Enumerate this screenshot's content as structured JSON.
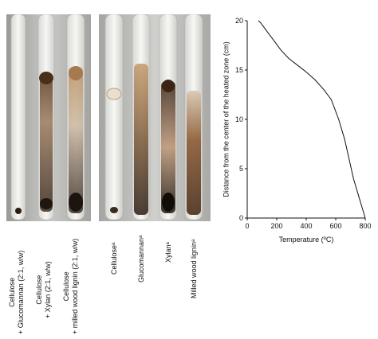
{
  "figure": {
    "sample_labels": [
      "Cellulose\n+ Glucomannan (2:1, w/w)",
      "Cellulose\n+ Xylan (2:1, w/w)",
      "Cellulose\n+ milled wood lignin (2:1, w/w)",
      "Celluloseᵃ",
      "Glucomannanᵃ",
      "Xylanᵃ",
      "Milled wood ligninᵃ"
    ]
  },
  "chart_data": {
    "type": "line",
    "title": "",
    "xlabel": "Temperature (ºC)",
    "ylabel": "Distance from the center of the heated zone (cm)",
    "xlim": [
      0,
      800
    ],
    "ylim": [
      0,
      20
    ],
    "x_ticks": [
      "0",
      "200",
      "400",
      "600",
      "800"
    ],
    "y_ticks": [
      "0",
      "5",
      "10",
      "15",
      "20"
    ],
    "grid": false,
    "series": [
      {
        "name": "",
        "x": [
          800,
          760,
          720,
          690,
          660,
          620,
          570,
          520,
          460,
          400,
          340,
          280,
          230,
          180,
          140,
          110,
          90,
          75
        ],
        "y": [
          0,
          2,
          4,
          6,
          8,
          10,
          12,
          13,
          14,
          14.8,
          15.5,
          16.2,
          17,
          18,
          18.8,
          19.4,
          19.8,
          20
        ]
      }
    ]
  }
}
